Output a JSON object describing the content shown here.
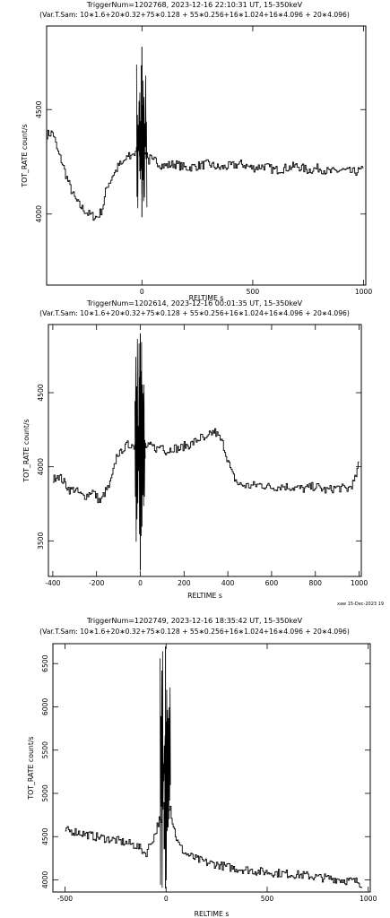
{
  "colors": {
    "ink": "#000000",
    "background": "#ffffff"
  },
  "footer_stamp": "xaw 15-Dec-2023 19",
  "chart_data": [
    {
      "type": "line",
      "title": "TriggerNum=1202768, 2023-12-16 22:10:31 UT, 15-350keV",
      "subtitle": "(Var.T.Sam: 10∗1.6+20∗0.32+75∗0.128  +  55∗0.256+16∗1.024+16∗4.096  +  20∗4.096)",
      "xlabel": "RELTIME  s",
      "ylabel": "TOT_RATE  count/s",
      "xlim": [
        -430,
        1010
      ],
      "ylim": [
        3660,
        4900
      ],
      "xticks": [
        0,
        500,
        1000
      ],
      "yticks": [
        4000,
        4500
      ],
      "series": [
        {
          "x": [
            -430,
            -400,
            -380,
            -360,
            -340,
            -320,
            -300,
            -280,
            -260,
            -240,
            -220,
            -200,
            -180,
            -170,
            -160,
            -150,
            -140,
            -130,
            -120,
            -110,
            -100,
            -90,
            -80,
            -70,
            -60,
            -50,
            -40,
            -30,
            -20,
            -10,
            -6,
            -3,
            0,
            3,
            6,
            10,
            20,
            30,
            40,
            50,
            60,
            70,
            80,
            100,
            150,
            200,
            250,
            300,
            350,
            400,
            450,
            500,
            550,
            600,
            650,
            700,
            750,
            800,
            850,
            900,
            950,
            1000
          ],
          "y": [
            4380,
            4390,
            4300,
            4250,
            4180,
            4120,
            4070,
            4040,
            4020,
            4000,
            3990,
            3985,
            4020,
            4060,
            4120,
            4150,
            4160,
            4190,
            4200,
            4220,
            4240,
            4230,
            4260,
            4250,
            4290,
            4270,
            4300,
            4280,
            4310,
            4350,
            4100,
            4650,
            4800,
            4150,
            4300,
            4280,
            4310,
            4250,
            4270,
            4240,
            4260,
            4250,
            4240,
            4230,
            4240,
            4220,
            4230,
            4240,
            4220,
            4230,
            4240,
            4220,
            4230,
            4210,
            4220,
            4230,
            4210,
            4220,
            4200,
            4210,
            4200,
            4210
          ]
        }
      ]
    },
    {
      "type": "line",
      "title": "TriggerNum=1202614, 2023-12-16 00:01:35 UT, 15-350keV",
      "subtitle": "(Var.T.Sam: 10∗1.6+20∗0.32+75∗0.128  +  55∗0.256+16∗1.024+16∗4.096  +  20∗4.096)",
      "xlabel": "RELTIME  s",
      "ylabel": "TOT_RATE  count/s",
      "xlim": [
        -420,
        1010
      ],
      "ylim": [
        3260,
        4960
      ],
      "xticks": [
        -400,
        -200,
        0,
        200,
        400,
        600,
        800,
        1000
      ],
      "yticks": [
        3500,
        4000,
        4500
      ],
      "series": [
        {
          "x": [
            -400,
            -380,
            -360,
            -340,
            -320,
            -300,
            -280,
            -260,
            -240,
            -220,
            -200,
            -180,
            -170,
            -160,
            -150,
            -140,
            -130,
            -120,
            -110,
            -100,
            -90,
            -80,
            -70,
            -60,
            -50,
            -40,
            -30,
            -20,
            -10,
            -6,
            -3,
            0,
            3,
            6,
            10,
            20,
            30,
            50,
            80,
            100,
            120,
            150,
            180,
            200,
            230,
            260,
            280,
            300,
            320,
            340,
            360,
            380,
            400,
            420,
            450,
            500,
            550,
            600,
            650,
            700,
            750,
            800,
            850,
            900,
            950,
            980,
            1000
          ],
          "y": [
            3900,
            3950,
            3920,
            3880,
            3840,
            3850,
            3820,
            3800,
            3810,
            3840,
            3800,
            3760,
            3800,
            3830,
            3850,
            3870,
            3920,
            3980,
            4060,
            4100,
            4080,
            4130,
            4120,
            4150,
            4140,
            4160,
            4130,
            4170,
            4200,
            4050,
            4350,
            4900,
            3300,
            4150,
            4180,
            4150,
            4130,
            4140,
            4120,
            4150,
            4100,
            4130,
            4120,
            4140,
            4150,
            4180,
            4200,
            4170,
            4220,
            4240,
            4200,
            4150,
            4050,
            3950,
            3880,
            3870,
            3880,
            3860,
            3870,
            3860,
            3850,
            3870,
            3840,
            3860,
            3850,
            3900,
            4020
          ]
        }
      ]
    },
    {
      "type": "line",
      "title": "TriggerNum=1202749, 2023-12-16 18:35:42 UT, 15-350keV",
      "subtitle": "(Var.T.Sam: 10∗1.6+20∗0.32+75∗0.128  +  55∗0.256+16∗1.024+16∗4.096  +  20∗4.096)",
      "xlabel": "RELTIME  s",
      "ylabel": "TOT_RATE  count/s",
      "xlim": [
        -560,
        1010
      ],
      "ylim": [
        3860,
        6730
      ],
      "xticks": [
        -500,
        0,
        500,
        1000
      ],
      "yticks": [
        4000,
        4500,
        5000,
        5500,
        6000,
        6500
      ],
      "series": [
        {
          "x": [
            -500,
            -450,
            -400,
            -350,
            -300,
            -250,
            -200,
            -150,
            -120,
            -100,
            -80,
            -60,
            -50,
            -40,
            -30,
            -20,
            -15,
            -10,
            -6,
            -3,
            0,
            3,
            6,
            10,
            15,
            20,
            30,
            40,
            50,
            60,
            80,
            100,
            150,
            200,
            250,
            300,
            350,
            400,
            450,
            500,
            550,
            600,
            650,
            700,
            750,
            800,
            850,
            900,
            950,
            970
          ],
          "y": [
            4570,
            4560,
            4530,
            4500,
            4480,
            4460,
            4430,
            4400,
            4350,
            4300,
            4400,
            4500,
            4550,
            4650,
            4700,
            4600,
            5000,
            4750,
            3900,
            6700,
            4200,
            5200,
            4600,
            4700,
            4800,
            4900,
            4700,
            4600,
            4500,
            4420,
            4350,
            4300,
            4240,
            4200,
            4180,
            4150,
            4130,
            4120,
            4100,
            4090,
            4080,
            4070,
            4060,
            4050,
            4030,
            4020,
            4010,
            3990,
            3980,
            3950
          ]
        }
      ]
    }
  ]
}
